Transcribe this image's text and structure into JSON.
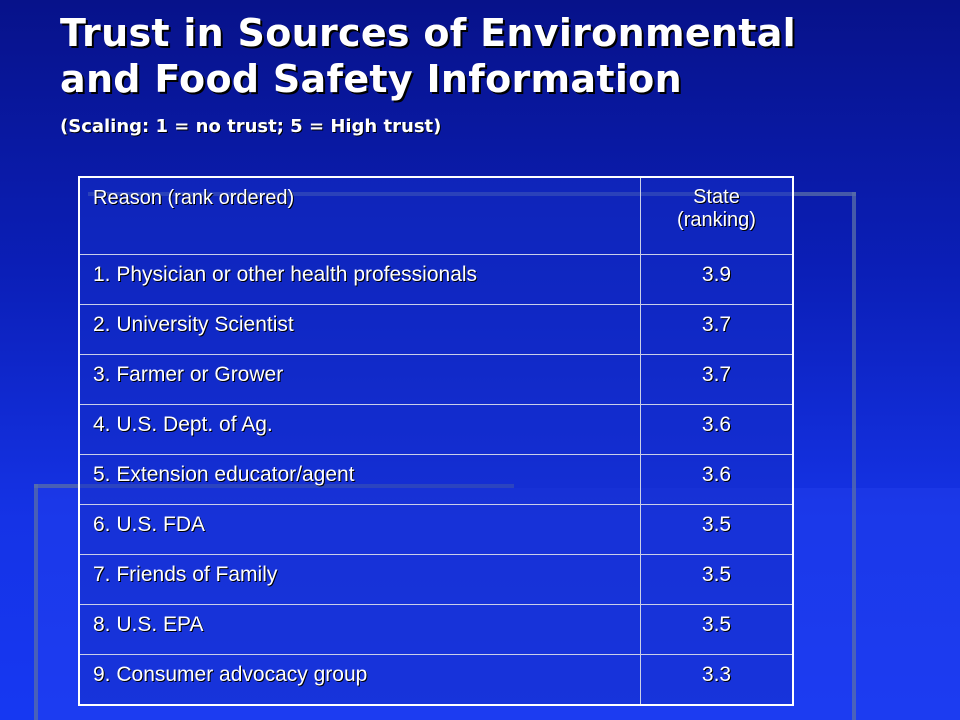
{
  "slide": {
    "title_line1": "Trust in Sources of Environmental",
    "title_line2": "and Food Safety Information",
    "subtitle": "(Scaling: 1 = no trust; 5 = High trust)"
  },
  "table": {
    "headers": {
      "reason": "Reason (rank ordered)",
      "state_line1": "State",
      "state_line2": "(ranking)"
    },
    "rows": [
      {
        "reason": "1.  Physician or other health professionals",
        "value": "3.9"
      },
      {
        "reason": "2.  University Scientist",
        "value": "3.7"
      },
      {
        "reason": "3.  Farmer or Grower",
        "value": "3.7"
      },
      {
        "reason": "4.  U.S. Dept. of Ag.",
        "value": "3.6"
      },
      {
        "reason": "5.  Extension educator/agent",
        "value": "3.6"
      },
      {
        "reason": "6.  U.S. FDA",
        "value": "3.5"
      },
      {
        "reason": "7.  Friends of Family",
        "value": "3.5"
      },
      {
        "reason": "8.  U.S. EPA",
        "value": "3.5"
      },
      {
        "reason": "9.  Consumer advocacy group",
        "value": "3.3"
      }
    ]
  }
}
